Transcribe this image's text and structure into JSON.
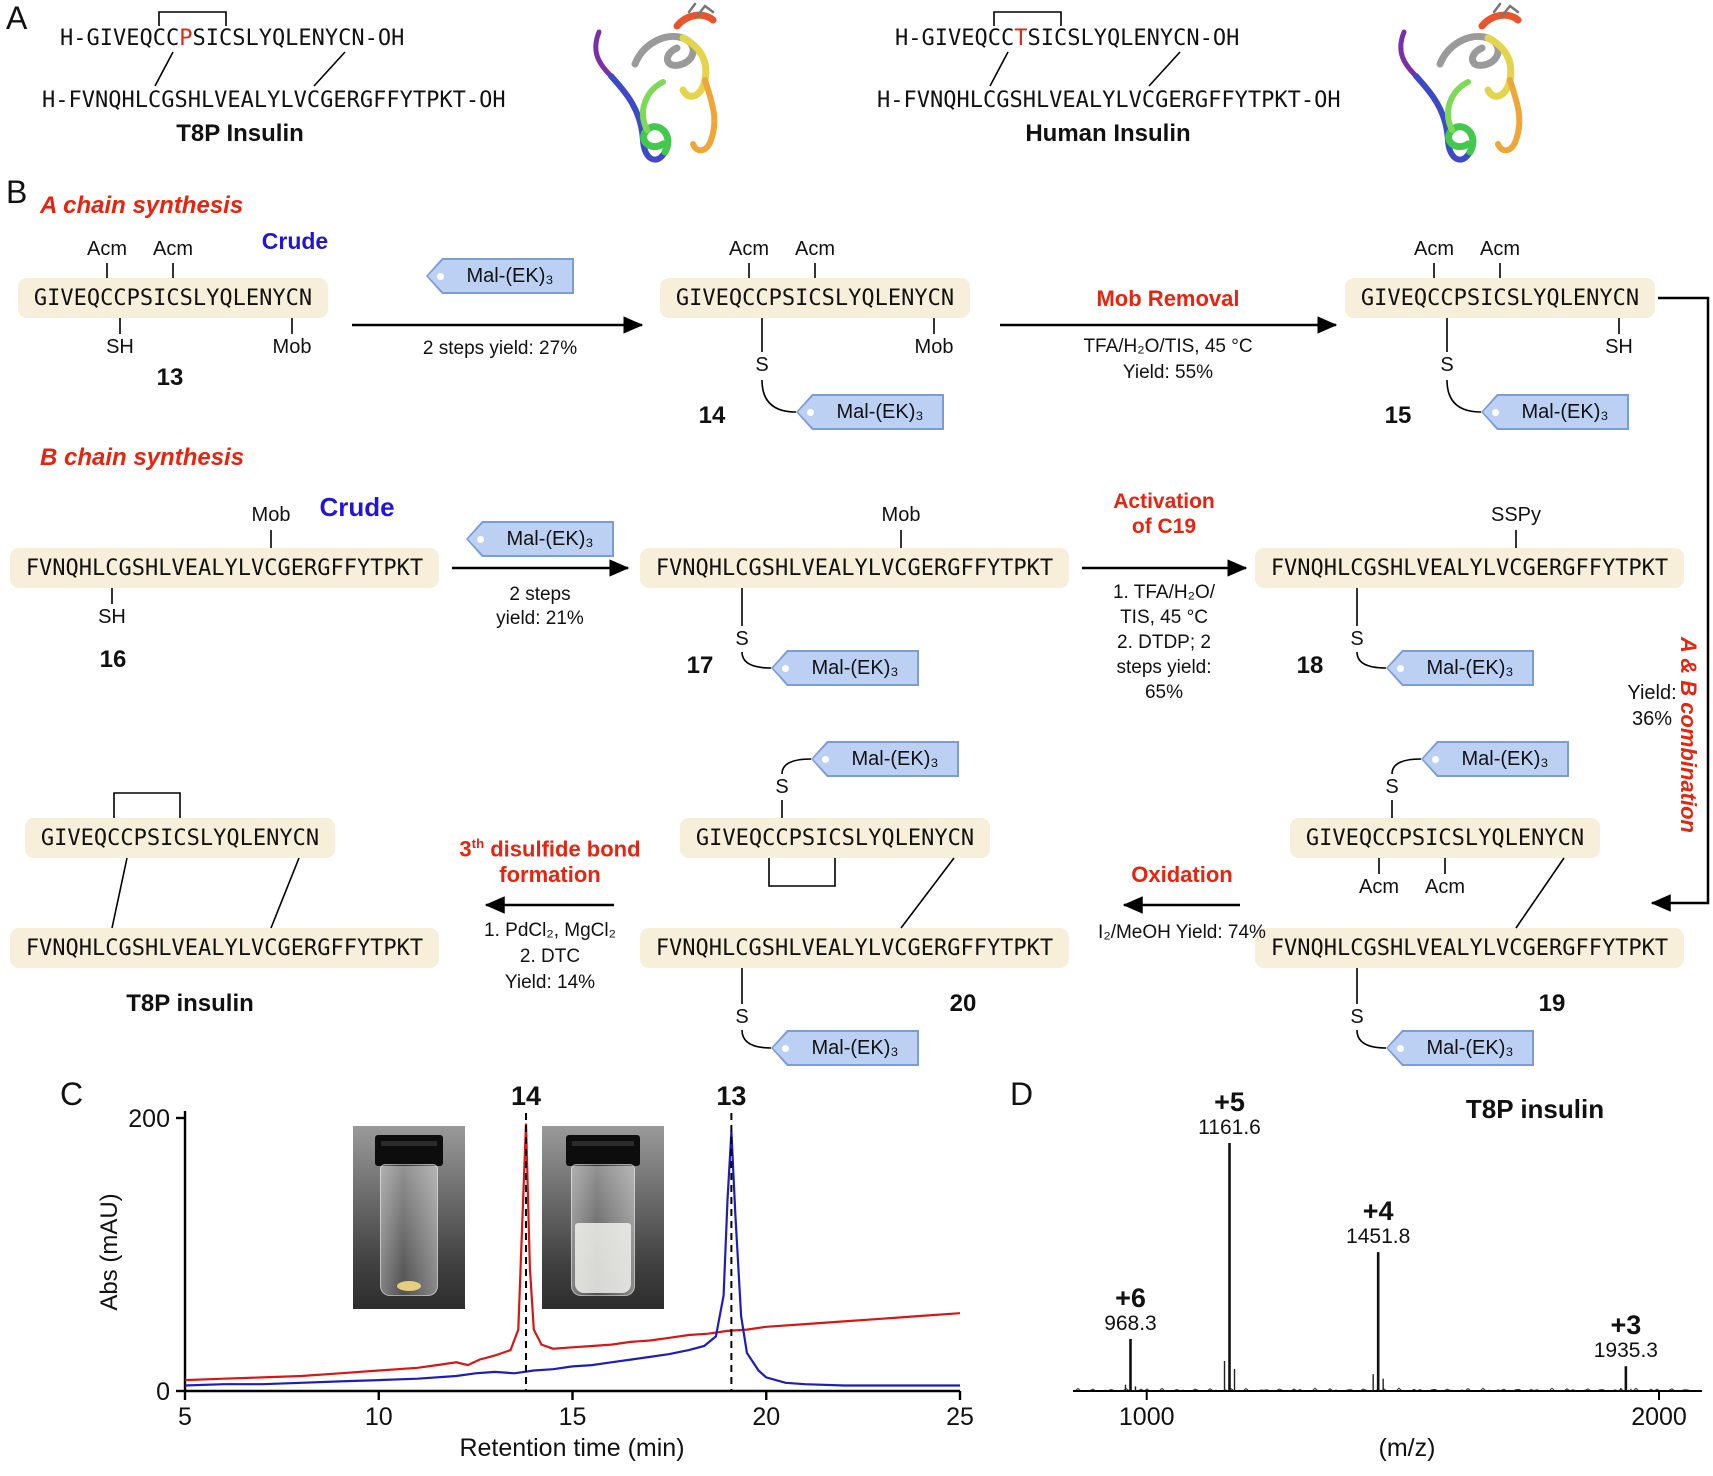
{
  "colors": {
    "accent_red": "#e8230e",
    "accent_blue": "#2016d9",
    "sequence_box_bg": "#f7efd9",
    "tag_fill": "#bcd0f3",
    "tag_border": "#7b9cd6",
    "trace_red": "#d91616",
    "trace_blue": "#1d1dbb"
  },
  "panels": {
    "a": "A",
    "b": "B",
    "c": "C",
    "d": "D"
  },
  "panel_a": {
    "t8p": {
      "a_pre": "H-GIVEQCC",
      "mut": "P",
      "a_post": "SICSLYQLENYCN-OH",
      "b": "H-FVNQHLCGSHLVEALYLVCGERGFFYTPKT-OH",
      "name": "T8P Insulin"
    },
    "human": {
      "a_pre": "H-GIVEQCC",
      "mut": "T",
      "a_post": "SICSLYQLENYCN-OH",
      "b": "H-FVNQHLCGSHLVEALYLVCGERGFFYTPKT-OH",
      "name": "Human Insulin"
    }
  },
  "scheme": {
    "section_a": "A chain synthesis",
    "section_b": "B chain synthesis",
    "crude": "Crude",
    "seq_a": "GIVEQCCPSICSLYQLENYCN",
    "seq_b": "FVNQHLCGSHLVEALYLVCGERGFFYTPKT",
    "tag": "Mal-(EK)₃",
    "acm": "Acm",
    "mob": "Mob",
    "sh": "SH",
    "s": "S",
    "sspy": "SSPy",
    "num_13": "13",
    "num_14": "14",
    "num_15": "15",
    "num_16": "16",
    "num_17": "17",
    "num_18": "18",
    "num_19": "19",
    "num_20": "20",
    "final_name": "T8P insulin",
    "step1": {
      "below": "2 steps yield: 27%"
    },
    "step2": {
      "title": "Mob Removal",
      "cond1": "TFA/H₂O/TIS, 45 °C",
      "cond2": "Yield: 55%"
    },
    "step3": {
      "below1": "2 steps",
      "below2": "yield: 21%"
    },
    "step4": {
      "title1": "Activation",
      "title2": "of C19",
      "cond1": "1.  TFA/H₂O/",
      "cond2": "TIS, 45 °C",
      "cond3": "2.  DTDP; 2",
      "cond4": "steps yield:",
      "cond5": "65%"
    },
    "combo": {
      "title": "A & B combination",
      "yield1": "Yield:",
      "yield2": "36%"
    },
    "ox": {
      "title": "Oxidation",
      "cond": "I₂/MeOH Yield: 74%"
    },
    "ds3": {
      "t_num": "3",
      "t_sup": "th",
      "t_rest": " disulfide bond",
      "t2": "formation",
      "cond1": "1.  PdCl₂, MgCl₂",
      "cond2": "2.  DTC",
      "cond3": "Yield: 14%"
    }
  },
  "chart_data": [
    {
      "type": "line",
      "title": "",
      "xlabel": "Retention time (min)",
      "ylabel": "Abs (mAU)",
      "xlim": [
        5,
        25
      ],
      "ylim": [
        0,
        200
      ],
      "xticks": [
        5,
        10,
        15,
        20,
        25
      ],
      "yticks": [
        0,
        200
      ],
      "grid": false,
      "series": [
        {
          "name": "14",
          "color": "#d91616",
          "peak_label": "14",
          "peak_x": 13.8,
          "points": [
            [
              5,
              8
            ],
            [
              6,
              9
            ],
            [
              7,
              10
            ],
            [
              8,
              11
            ],
            [
              9,
              13
            ],
            [
              10,
              15
            ],
            [
              11,
              17
            ],
            [
              11.5,
              19
            ],
            [
              12,
              21
            ],
            [
              12.3,
              19
            ],
            [
              12.6,
              23
            ],
            [
              13,
              26
            ],
            [
              13.4,
              30
            ],
            [
              13.6,
              45
            ],
            [
              13.7,
              120
            ],
            [
              13.8,
              196
            ],
            [
              13.9,
              90
            ],
            [
              14,
              45
            ],
            [
              14.2,
              34
            ],
            [
              14.5,
              31
            ],
            [
              15,
              32
            ],
            [
              15.5,
              33
            ],
            [
              16,
              34
            ],
            [
              16.5,
              36
            ],
            [
              17,
              37
            ],
            [
              17.5,
              39
            ],
            [
              18,
              41
            ],
            [
              18.5,
              42
            ],
            [
              19,
              44
            ],
            [
              19.5,
              45
            ],
            [
              20,
              47
            ],
            [
              21,
              49
            ],
            [
              22,
              51
            ],
            [
              23,
              53
            ],
            [
              24,
              55
            ],
            [
              25,
              57
            ]
          ]
        },
        {
          "name": "13",
          "color": "#1d1dbb",
          "peak_label": "13",
          "peak_x": 19.1,
          "points": [
            [
              5,
              4
            ],
            [
              6,
              5
            ],
            [
              7,
              5
            ],
            [
              8,
              6
            ],
            [
              9,
              7
            ],
            [
              10,
              8
            ],
            [
              11,
              9
            ],
            [
              12,
              11
            ],
            [
              12.5,
              13
            ],
            [
              13,
              14
            ],
            [
              13.5,
              13
            ],
            [
              14,
              15
            ],
            [
              14.5,
              16
            ],
            [
              15,
              18
            ],
            [
              15.5,
              19
            ],
            [
              16,
              21
            ],
            [
              16.5,
              23
            ],
            [
              17,
              25
            ],
            [
              17.5,
              27
            ],
            [
              18,
              30
            ],
            [
              18.4,
              33
            ],
            [
              18.7,
              40
            ],
            [
              18.9,
              70
            ],
            [
              19,
              140
            ],
            [
              19.1,
              190
            ],
            [
              19.2,
              130
            ],
            [
              19.35,
              55
            ],
            [
              19.5,
              28
            ],
            [
              19.8,
              15
            ],
            [
              20,
              10
            ],
            [
              20.5,
              6
            ],
            [
              21,
              5
            ],
            [
              22,
              4
            ],
            [
              23,
              4
            ],
            [
              24,
              4
            ],
            [
              25,
              4
            ]
          ]
        }
      ]
    },
    {
      "type": "mass_spectrum",
      "title": "T8P insulin",
      "xlabel": "(m/z)",
      "xlim": [
        860,
        2080
      ],
      "xticks": [
        1000,
        2000
      ],
      "peaks": [
        {
          "label": "+6",
          "mz": 968.3,
          "mz_label": "968.3",
          "rel_intensity": 0.21
        },
        {
          "label": "+5",
          "mz": 1161.6,
          "mz_label": "1161.6",
          "rel_intensity": 1.0
        },
        {
          "label": "+4",
          "mz": 1451.8,
          "mz_label": "1451.8",
          "rel_intensity": 0.56
        },
        {
          "label": "+3",
          "mz": 1935.3,
          "mz_label": "1935.3",
          "rel_intensity": 0.1
        }
      ]
    }
  ]
}
